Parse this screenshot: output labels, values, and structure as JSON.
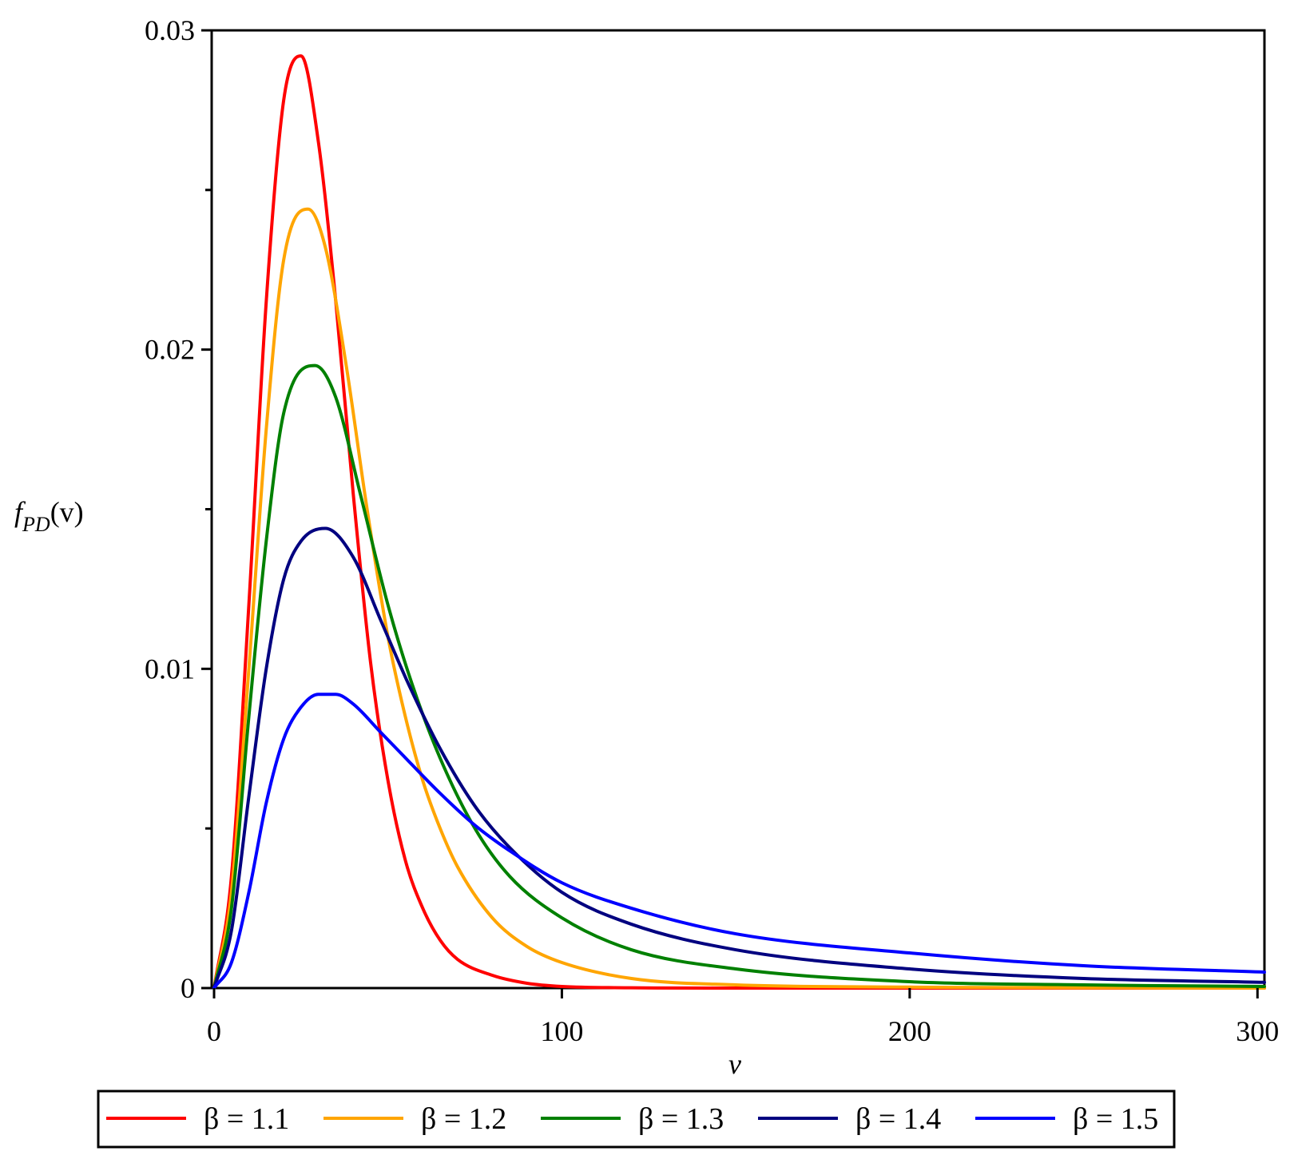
{
  "chart_data": {
    "type": "line",
    "title": "",
    "xlabel": "v",
    "ylabel": {
      "main": "f",
      "sub": "PD",
      "arg": "(v)"
    },
    "xlim": [
      0,
      302
    ],
    "ylim": [
      0,
      0.03
    ],
    "x_ticks": [
      {
        "value": 0,
        "label": "0"
      },
      {
        "value": 100,
        "label": "100"
      },
      {
        "value": 200,
        "label": "200"
      },
      {
        "value": 300,
        "label": "300"
      }
    ],
    "y_ticks": [
      {
        "value": 0,
        "label": "0"
      },
      {
        "value": 0.01,
        "label": "0.01"
      },
      {
        "value": 0.02,
        "label": "0.02"
      },
      {
        "value": 0.03,
        "label": "0.03"
      }
    ],
    "y_minor_ticks": [
      0.005,
      0.015,
      0.025
    ],
    "grid": false,
    "legend_position": "bottom",
    "series": [
      {
        "name": "β = 1.1",
        "color": "#ff0000",
        "x": [
          0,
          5,
          10,
          15,
          20,
          25,
          30,
          35,
          40,
          45,
          50,
          55,
          60,
          65,
          70,
          80,
          90,
          100,
          120,
          150,
          200,
          302
        ],
        "y": [
          0,
          0.0035,
          0.012,
          0.0215,
          0.0278,
          0.0292,
          0.0265,
          0.0215,
          0.0155,
          0.0102,
          0.0065,
          0.004,
          0.0025,
          0.0015,
          0.0009,
          0.0004,
          0.00015,
          5e-05,
          1e-05,
          0,
          0,
          0
        ]
      },
      {
        "name": "β = 1.2",
        "color": "#ffa500",
        "x": [
          0,
          5,
          10,
          15,
          20,
          27,
          32,
          38,
          44,
          50,
          55,
          60,
          65,
          70,
          80,
          90,
          100,
          120,
          150,
          200,
          250,
          302
        ],
        "y": [
          0,
          0.003,
          0.01,
          0.0175,
          0.0228,
          0.0244,
          0.0232,
          0.0195,
          0.015,
          0.011,
          0.0085,
          0.0065,
          0.005,
          0.0038,
          0.0022,
          0.0013,
          0.0008,
          0.0003,
          0.0001,
          3e-05,
          1e-05,
          0
        ]
      },
      {
        "name": "β = 1.3",
        "color": "#008000",
        "x": [
          0,
          5,
          10,
          15,
          20,
          29,
          35,
          42,
          50,
          57,
          65,
          75,
          85,
          100,
          120,
          150,
          200,
          250,
          302
        ],
        "y": [
          0,
          0.0025,
          0.0085,
          0.014,
          0.018,
          0.0195,
          0.0185,
          0.0155,
          0.012,
          0.0095,
          0.0072,
          0.005,
          0.0035,
          0.0022,
          0.0012,
          0.0006,
          0.0002,
          0.0001,
          5e-05
        ]
      },
      {
        "name": "β = 1.4",
        "color": "#000080",
        "x": [
          0,
          5,
          10,
          15,
          20,
          25,
          32,
          40,
          48,
          56,
          65,
          75,
          85,
          100,
          120,
          150,
          200,
          250,
          302
        ],
        "y": [
          0,
          0.0018,
          0.006,
          0.01,
          0.0128,
          0.014,
          0.0144,
          0.0135,
          0.0115,
          0.0095,
          0.0075,
          0.0057,
          0.0044,
          0.003,
          0.002,
          0.0012,
          0.0006,
          0.0003,
          0.00018
        ]
      },
      {
        "name": "β = 1.5",
        "color": "#0000ff",
        "x": [
          0,
          5,
          10,
          15,
          20,
          25,
          30,
          35,
          40,
          48,
          56,
          65,
          75,
          85,
          100,
          120,
          150,
          200,
          250,
          302
        ],
        "y": [
          0,
          0.0008,
          0.003,
          0.0058,
          0.0078,
          0.0088,
          0.0092,
          0.0092,
          0.0089,
          0.008,
          0.0071,
          0.0061,
          0.0051,
          0.0043,
          0.0033,
          0.0025,
          0.0017,
          0.0011,
          0.0007,
          0.0005
        ]
      }
    ]
  }
}
